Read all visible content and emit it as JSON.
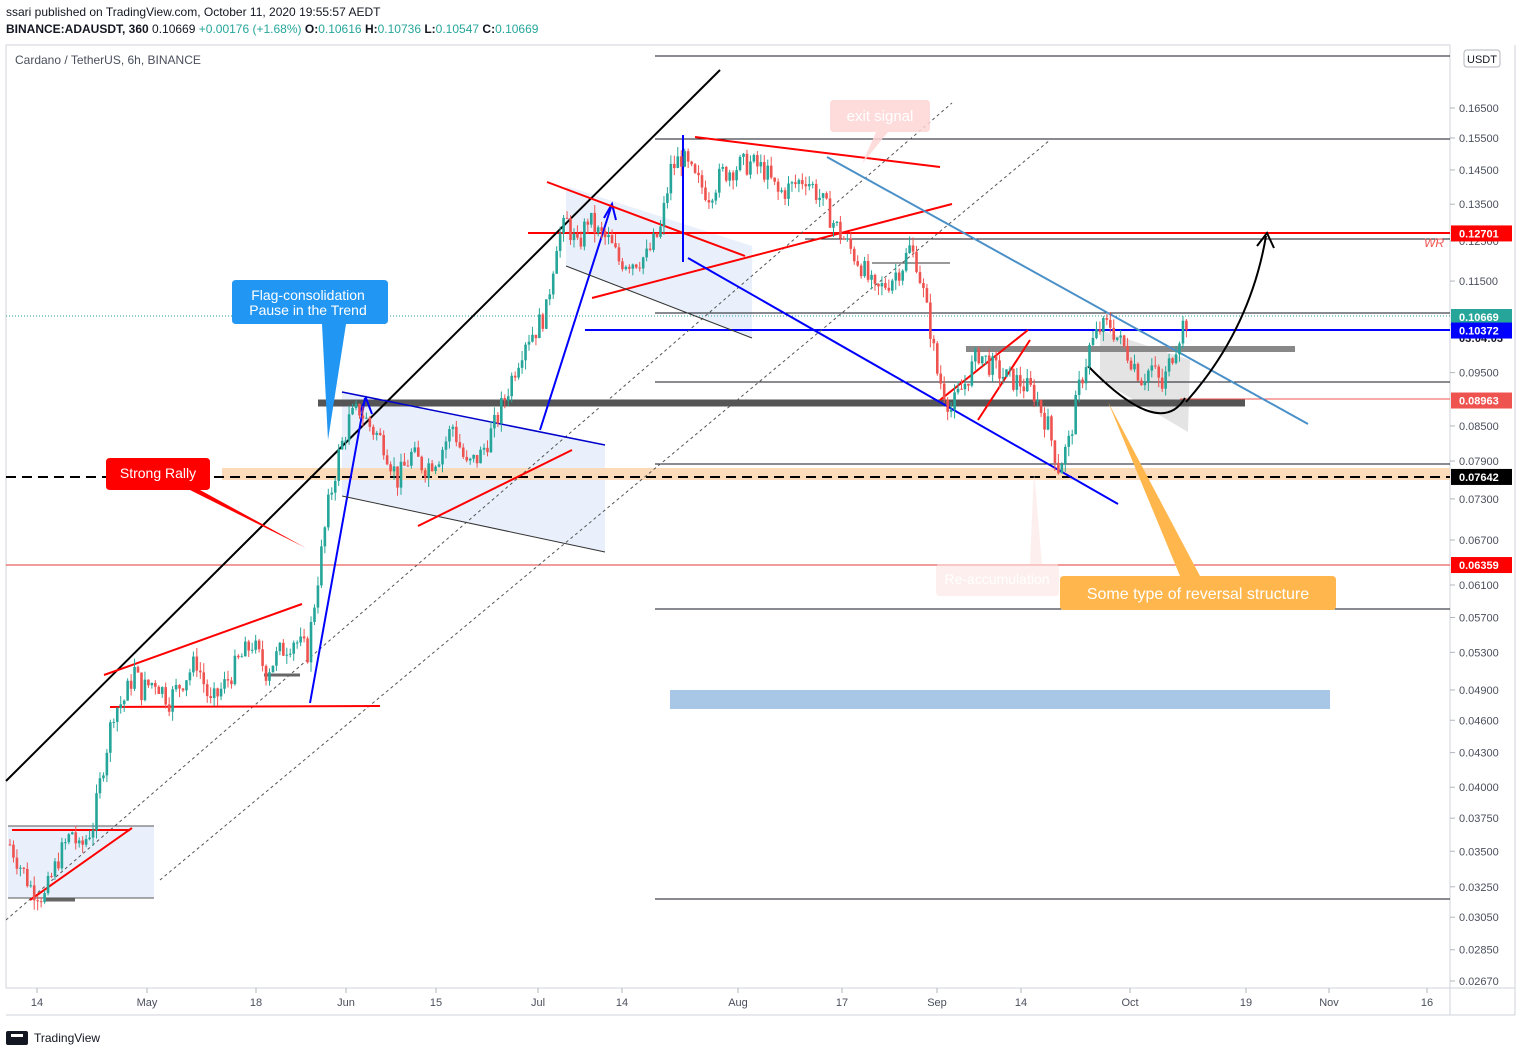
{
  "header": {
    "published": "ssari published on TradingView.com, October 11, 2020 19:55:57 AEDT",
    "symbol": "BINANCE:ADAUSDT, 360",
    "last": "0.10669",
    "change": "+0.00176 (+1.68%)",
    "o_label": "O:",
    "o": "0.10616",
    "h_label": "H:",
    "h": "0.10736",
    "l_label": "L:",
    "l": "0.10547",
    "c_label": "C:",
    "c": "0.10669"
  },
  "chart_title": "Cardano / TetherUS, 6h, BINANCE",
  "currency_badge": "USDT",
  "footer_brand": "TradingView",
  "colors": {
    "up": "#26a69a",
    "down": "#ef5350",
    "red_line": "#ff0000",
    "blue_line": "#0000ff",
    "orange_callout": "#ffb74d",
    "blue_callout": "#2196f3"
  },
  "chart_data": {
    "type": "candlestick",
    "y_axis": {
      "scale": "log",
      "ticks": [
        "0.16500",
        "0.15500",
        "0.14500",
        "0.13500",
        "0.12500",
        "0.11500",
        "0.10500",
        "0.09500",
        "0.08500",
        "0.07900",
        "0.07300",
        "0.06700",
        "0.06100",
        "0.05700",
        "0.05300",
        "0.04900",
        "0.04600",
        "0.04300",
        "0.04000",
        "0.03750",
        "0.03500",
        "0.03250",
        "0.03050",
        "0.02850",
        "0.02670"
      ]
    },
    "x_axis": {
      "ticks": [
        "14",
        "May",
        "18",
        "Jun",
        "15",
        "Jul",
        "14",
        "Aug",
        "17",
        "Sep",
        "14",
        "Oct",
        "19",
        "Nov",
        "16"
      ]
    },
    "price_labels": [
      {
        "value": "0.12701",
        "bg": "#ff0000"
      },
      {
        "value": "0.10669",
        "bg": "#26a69a"
      },
      {
        "value": "03:04:03",
        "bg": "#ffffff"
      },
      {
        "value": "0.10372",
        "bg": "#0000ff"
      },
      {
        "value": "0.08963",
        "bg": "#ef5350"
      },
      {
        "value": "0.07642",
        "bg": "#000000"
      },
      {
        "value": "0.06359",
        "bg": "#ff0000"
      }
    ],
    "price_path": [
      [
        0,
        0.0355
      ],
      [
        6,
        0.0325
      ],
      [
        10,
        0.0318
      ],
      [
        14,
        0.0345
      ],
      [
        18,
        0.0365
      ],
      [
        20,
        0.035
      ],
      [
        24,
        0.037
      ],
      [
        27,
        0.042
      ],
      [
        30,
        0.047
      ],
      [
        33,
        0.048
      ],
      [
        36,
        0.051
      ],
      [
        38,
        0.049
      ],
      [
        42,
        0.05
      ],
      [
        46,
        0.048
      ],
      [
        50,
        0.05
      ],
      [
        54,
        0.052
      ],
      [
        58,
        0.0475
      ],
      [
        62,
        0.0495
      ],
      [
        66,
        0.052
      ],
      [
        70,
        0.054
      ],
      [
        74,
        0.051
      ],
      [
        78,
        0.053
      ],
      [
        82,
        0.0545
      ],
      [
        86,
        0.053
      ],
      [
        89,
        0.062
      ],
      [
        92,
        0.072
      ],
      [
        95,
        0.08
      ],
      [
        98,
        0.086
      ],
      [
        101,
        0.088
      ],
      [
        104,
        0.085
      ],
      [
        108,
        0.082
      ],
      [
        112,
        0.076
      ],
      [
        116,
        0.08
      ],
      [
        120,
        0.078
      ],
      [
        124,
        0.08
      ],
      [
        128,
        0.085
      ],
      [
        132,
        0.078
      ],
      [
        136,
        0.08
      ],
      [
        140,
        0.085
      ],
      [
        143,
        0.09
      ],
      [
        146,
        0.096
      ],
      [
        149,
        0.102
      ],
      [
        152,
        0.104
      ],
      [
        155,
        0.108
      ],
      [
        158,
        0.125
      ],
      [
        161,
        0.13
      ],
      [
        164,
        0.123
      ],
      [
        167,
        0.131
      ],
      [
        170,
        0.127
      ],
      [
        173,
        0.125
      ],
      [
        176,
        0.12
      ],
      [
        180,
        0.12
      ],
      [
        184,
        0.121
      ],
      [
        188,
        0.128
      ],
      [
        191,
        0.145
      ],
      [
        194,
        0.149
      ],
      [
        198,
        0.142
      ],
      [
        202,
        0.138
      ],
      [
        206,
        0.144
      ],
      [
        210,
        0.146
      ],
      [
        214,
        0.147
      ],
      [
        218,
        0.145
      ],
      [
        222,
        0.138
      ],
      [
        226,
        0.14
      ],
      [
        230,
        0.143
      ],
      [
        234,
        0.137
      ],
      [
        238,
        0.13
      ],
      [
        242,
        0.124
      ],
      [
        246,
        0.119
      ],
      [
        250,
        0.112
      ],
      [
        254,
        0.115
      ],
      [
        258,
        0.119
      ],
      [
        260,
        0.123
      ],
      [
        262,
        0.12
      ],
      [
        264,
        0.112
      ],
      [
        266,
        0.104
      ],
      [
        268,
        0.095
      ],
      [
        272,
        0.088
      ],
      [
        276,
        0.093
      ],
      [
        280,
        0.099
      ],
      [
        284,
        0.096
      ],
      [
        288,
        0.094
      ],
      [
        292,
        0.093
      ],
      [
        296,
        0.091
      ],
      [
        300,
        0.085
      ],
      [
        303,
        0.078
      ],
      [
        306,
        0.082
      ],
      [
        309,
        0.092
      ],
      [
        312,
        0.1
      ],
      [
        315,
        0.104
      ],
      [
        318,
        0.105
      ],
      [
        321,
        0.101
      ],
      [
        324,
        0.098
      ],
      [
        327,
        0.094
      ],
      [
        330,
        0.096
      ],
      [
        333,
        0.092
      ],
      [
        336,
        0.099
      ],
      [
        339,
        0.105
      ],
      [
        341,
        0.1067
      ]
    ],
    "text_labels": [
      {
        "key": "flag1",
        "text": "Flag-consolidation"
      },
      {
        "key": "flag2",
        "text": "Pause in the Trend"
      },
      {
        "key": "rally",
        "text": "Strong Rally"
      },
      {
        "key": "exit",
        "text": "exit signal"
      },
      {
        "key": "reversal",
        "text": "Some type of reversal structure"
      },
      {
        "key": "faded",
        "text": "Re-accumulation"
      },
      {
        "key": "wr",
        "text": "WR"
      }
    ]
  }
}
